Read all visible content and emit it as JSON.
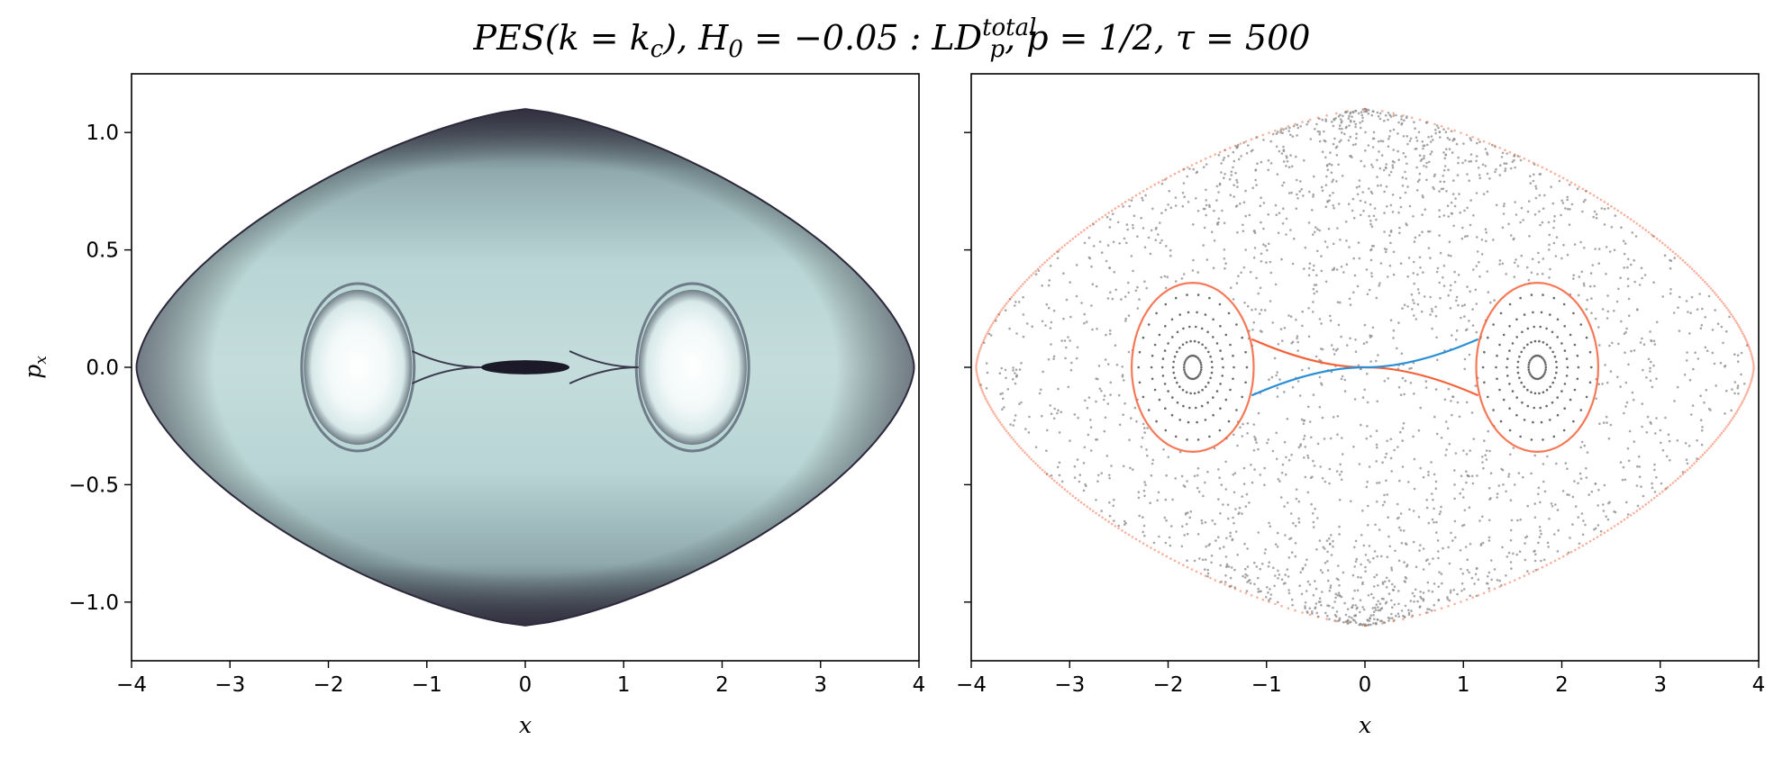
{
  "figure_title": {
    "main": "PES(k = k",
    "sub_c": "c",
    "mid": "), H",
    "sub_0": "0",
    "eq": " = −0.05 : LD",
    "sup_total": "total",
    "sub_p": "p",
    "tail": ", p = 1/2, τ = 500"
  },
  "chart_data": [
    {
      "type": "heatmap",
      "panel": "left",
      "xlabel": "x",
      "ylabel": "p",
      "ylabel_sub": "x",
      "xlim": [
        -4,
        4
      ],
      "ylim": [
        -1.25,
        1.25
      ],
      "x_ticks": [
        -4,
        -3,
        -2,
        -1,
        0,
        1,
        2,
        3,
        4
      ],
      "x_tick_labels": [
        "−4",
        "−3",
        "−2",
        "−1",
        "0",
        "1",
        "2",
        "3",
        "4"
      ],
      "y_ticks": [
        -1.0,
        -0.5,
        0.0,
        0.5,
        1.0
      ],
      "y_tick_labels": [
        "−1.0",
        "−0.5",
        "0.0",
        "0.5",
        "1.0"
      ],
      "colormap": "bone",
      "colors": {
        "low": "#2f2b3e",
        "mid": "#b6d2d2",
        "high": "#ffffff"
      },
      "regions": [
        {
          "name": "light-island-left",
          "cx": -1.7,
          "cy": 0.0,
          "rx": 0.55,
          "ry": 0.33
        },
        {
          "name": "light-island-right",
          "cx": 1.7,
          "cy": 0.0,
          "rx": 0.55,
          "ry": 0.33
        },
        {
          "name": "dark-center-lobe",
          "cx": 0.0,
          "cy": 0.0,
          "rx": 0.45,
          "ry": 0.03
        }
      ],
      "boundary_extent": {
        "x_max": 3.95,
        "px_max": 1.1
      }
    },
    {
      "type": "scatter",
      "panel": "right",
      "xlabel": "x",
      "xlim": [
        -4,
        4
      ],
      "ylim": [
        -1.25,
        1.25
      ],
      "x_ticks": [
        -4,
        -3,
        -2,
        -1,
        0,
        1,
        2,
        3,
        4
      ],
      "x_tick_labels": [
        "−4",
        "−3",
        "−2",
        "−1",
        "0",
        "1",
        "2",
        "3",
        "4"
      ],
      "y_ticks": [
        -1.0,
        -0.5,
        0.0,
        0.5,
        1.0
      ],
      "y_tick_labels_shown": false,
      "series": [
        {
          "color": "#8a8a8a",
          "description_key": "poincare-section-points"
        },
        {
          "color": "#f4623a",
          "description_key": "stable-manifold"
        },
        {
          "color": "#2b8fd6",
          "description_key": "unstable-manifold"
        }
      ],
      "island_centers": [
        [
          -1.75,
          0.0
        ],
        [
          1.75,
          0.0
        ]
      ],
      "boundary_extent": {
        "x_max": 3.95,
        "px_max": 1.1
      }
    }
  ]
}
